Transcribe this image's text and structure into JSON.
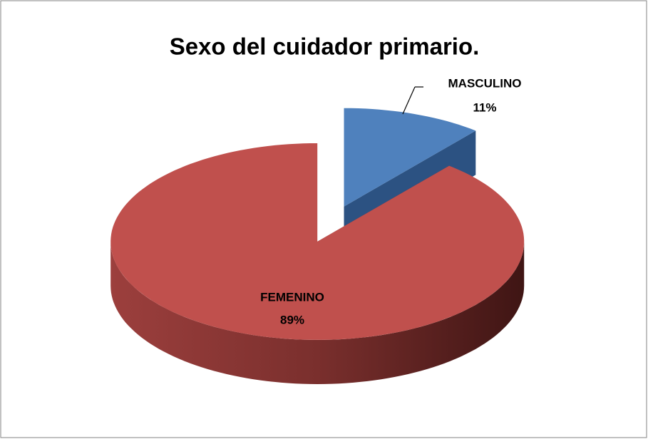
{
  "chart_data": {
    "type": "pie",
    "title": "Sexo del cuidador primario.",
    "categories": [
      "MASCULINO",
      "FEMENINO"
    ],
    "values": [
      11,
      89
    ],
    "value_labels": [
      "11%",
      "89%"
    ],
    "colors": [
      "#4f81bd",
      "#c0504d"
    ]
  }
}
